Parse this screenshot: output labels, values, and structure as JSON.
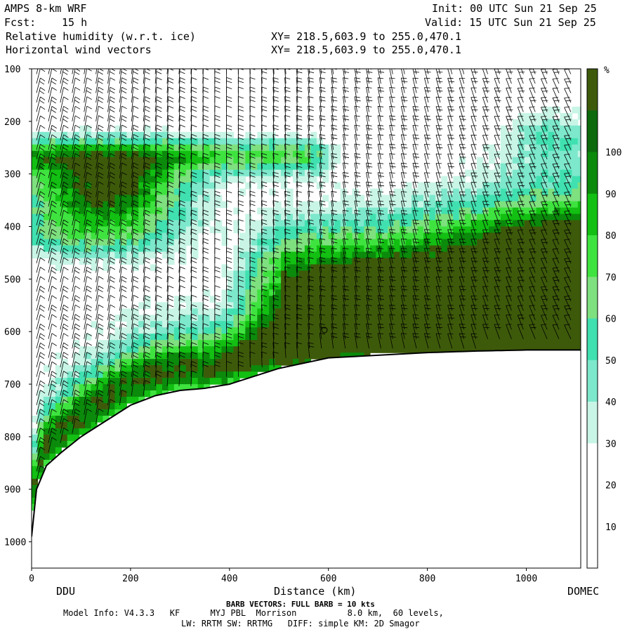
{
  "header": {
    "model": "AMPS 8-km WRF",
    "forecast_label": "Fcst:",
    "forecast_value": "15 h",
    "init": "Init: 00 UTC Sun 21 Sep 25",
    "valid": "Valid: 15 UTC Sun 21 Sep 25",
    "field1": "Relative humidity (w.r.t. ice)",
    "field2": "Horizontal wind vectors",
    "xy1": "XY= 218.5,603.9 to 255.0,470.1",
    "xy2": "XY= 218.5,603.9 to 255.0,470.1"
  },
  "footer": {
    "start_label": "DDU",
    "end_label": "DOMEC",
    "barb_note": "BARB VECTORS: FULL BARB = 10 kts",
    "model_info1": "Model Info: V4.3.3   KF      MYJ PBL  Morrison          8.0 km,  60 levels,",
    "model_info2": "LW: RRTM SW: RRTMG   DIFF: simple KM: 2D Smagor"
  },
  "chart_data": {
    "type": "heatmap",
    "title": "Relative humidity (w.r.t. ice)",
    "xlabel": "Distance (km)",
    "ylabel": "",
    "xlim": [
      0,
      1110
    ],
    "ylim": [
      1050,
      100
    ],
    "x_ticks": [
      0,
      200,
      400,
      600,
      800,
      1000
    ],
    "y_ticks": [
      100,
      200,
      300,
      400,
      500,
      600,
      700,
      800,
      900,
      1000
    ],
    "colorbar": {
      "unit": "%",
      "levels": [
        10,
        20,
        30,
        40,
        50,
        60,
        70,
        80,
        90,
        100
      ],
      "colors": [
        "#ffffff",
        "#ffffff",
        "#ffffff",
        "#c8f5e6",
        "#7de8cc",
        "#40e0b0",
        "#7ee07e",
        "#3fe33f",
        "#12bf12",
        "#0b8a0b",
        "#0c6a0c",
        "#3d5a0a"
      ]
    },
    "terrain": [
      [
        0,
        990
      ],
      [
        10,
        900
      ],
      [
        30,
        855
      ],
      [
        60,
        830
      ],
      [
        100,
        800
      ],
      [
        150,
        770
      ],
      [
        200,
        740
      ],
      [
        250,
        722
      ],
      [
        300,
        712
      ],
      [
        350,
        708
      ],
      [
        400,
        700
      ],
      [
        450,
        685
      ],
      [
        500,
        670
      ],
      [
        550,
        660
      ],
      [
        600,
        650
      ],
      [
        700,
        645
      ],
      [
        800,
        640
      ],
      [
        900,
        637
      ],
      [
        1000,
        635
      ],
      [
        1110,
        635
      ]
    ],
    "rh_features": [
      {
        "name": "upper-band",
        "x": [
          0,
          550
        ],
        "p": [
          240,
          300
        ],
        "rh": 55
      },
      {
        "name": "upper-core",
        "x": [
          20,
          250
        ],
        "p": [
          270,
          400
        ],
        "rh": 95
      },
      {
        "name": "mid-layer",
        "x": [
          400,
          1110
        ],
        "p": [
          300,
          550
        ],
        "rh": 55
      },
      {
        "name": "surface-layer",
        "x": [
          0,
          1110
        ],
        "p": [
          600,
          720
        ],
        "rh": 85
      },
      {
        "name": "plateau-moist",
        "x": [
          900,
          1110
        ],
        "p": [
          380,
          635
        ],
        "rh": 100
      }
    ],
    "barbs": {
      "full_barb_kts": 10
    }
  }
}
